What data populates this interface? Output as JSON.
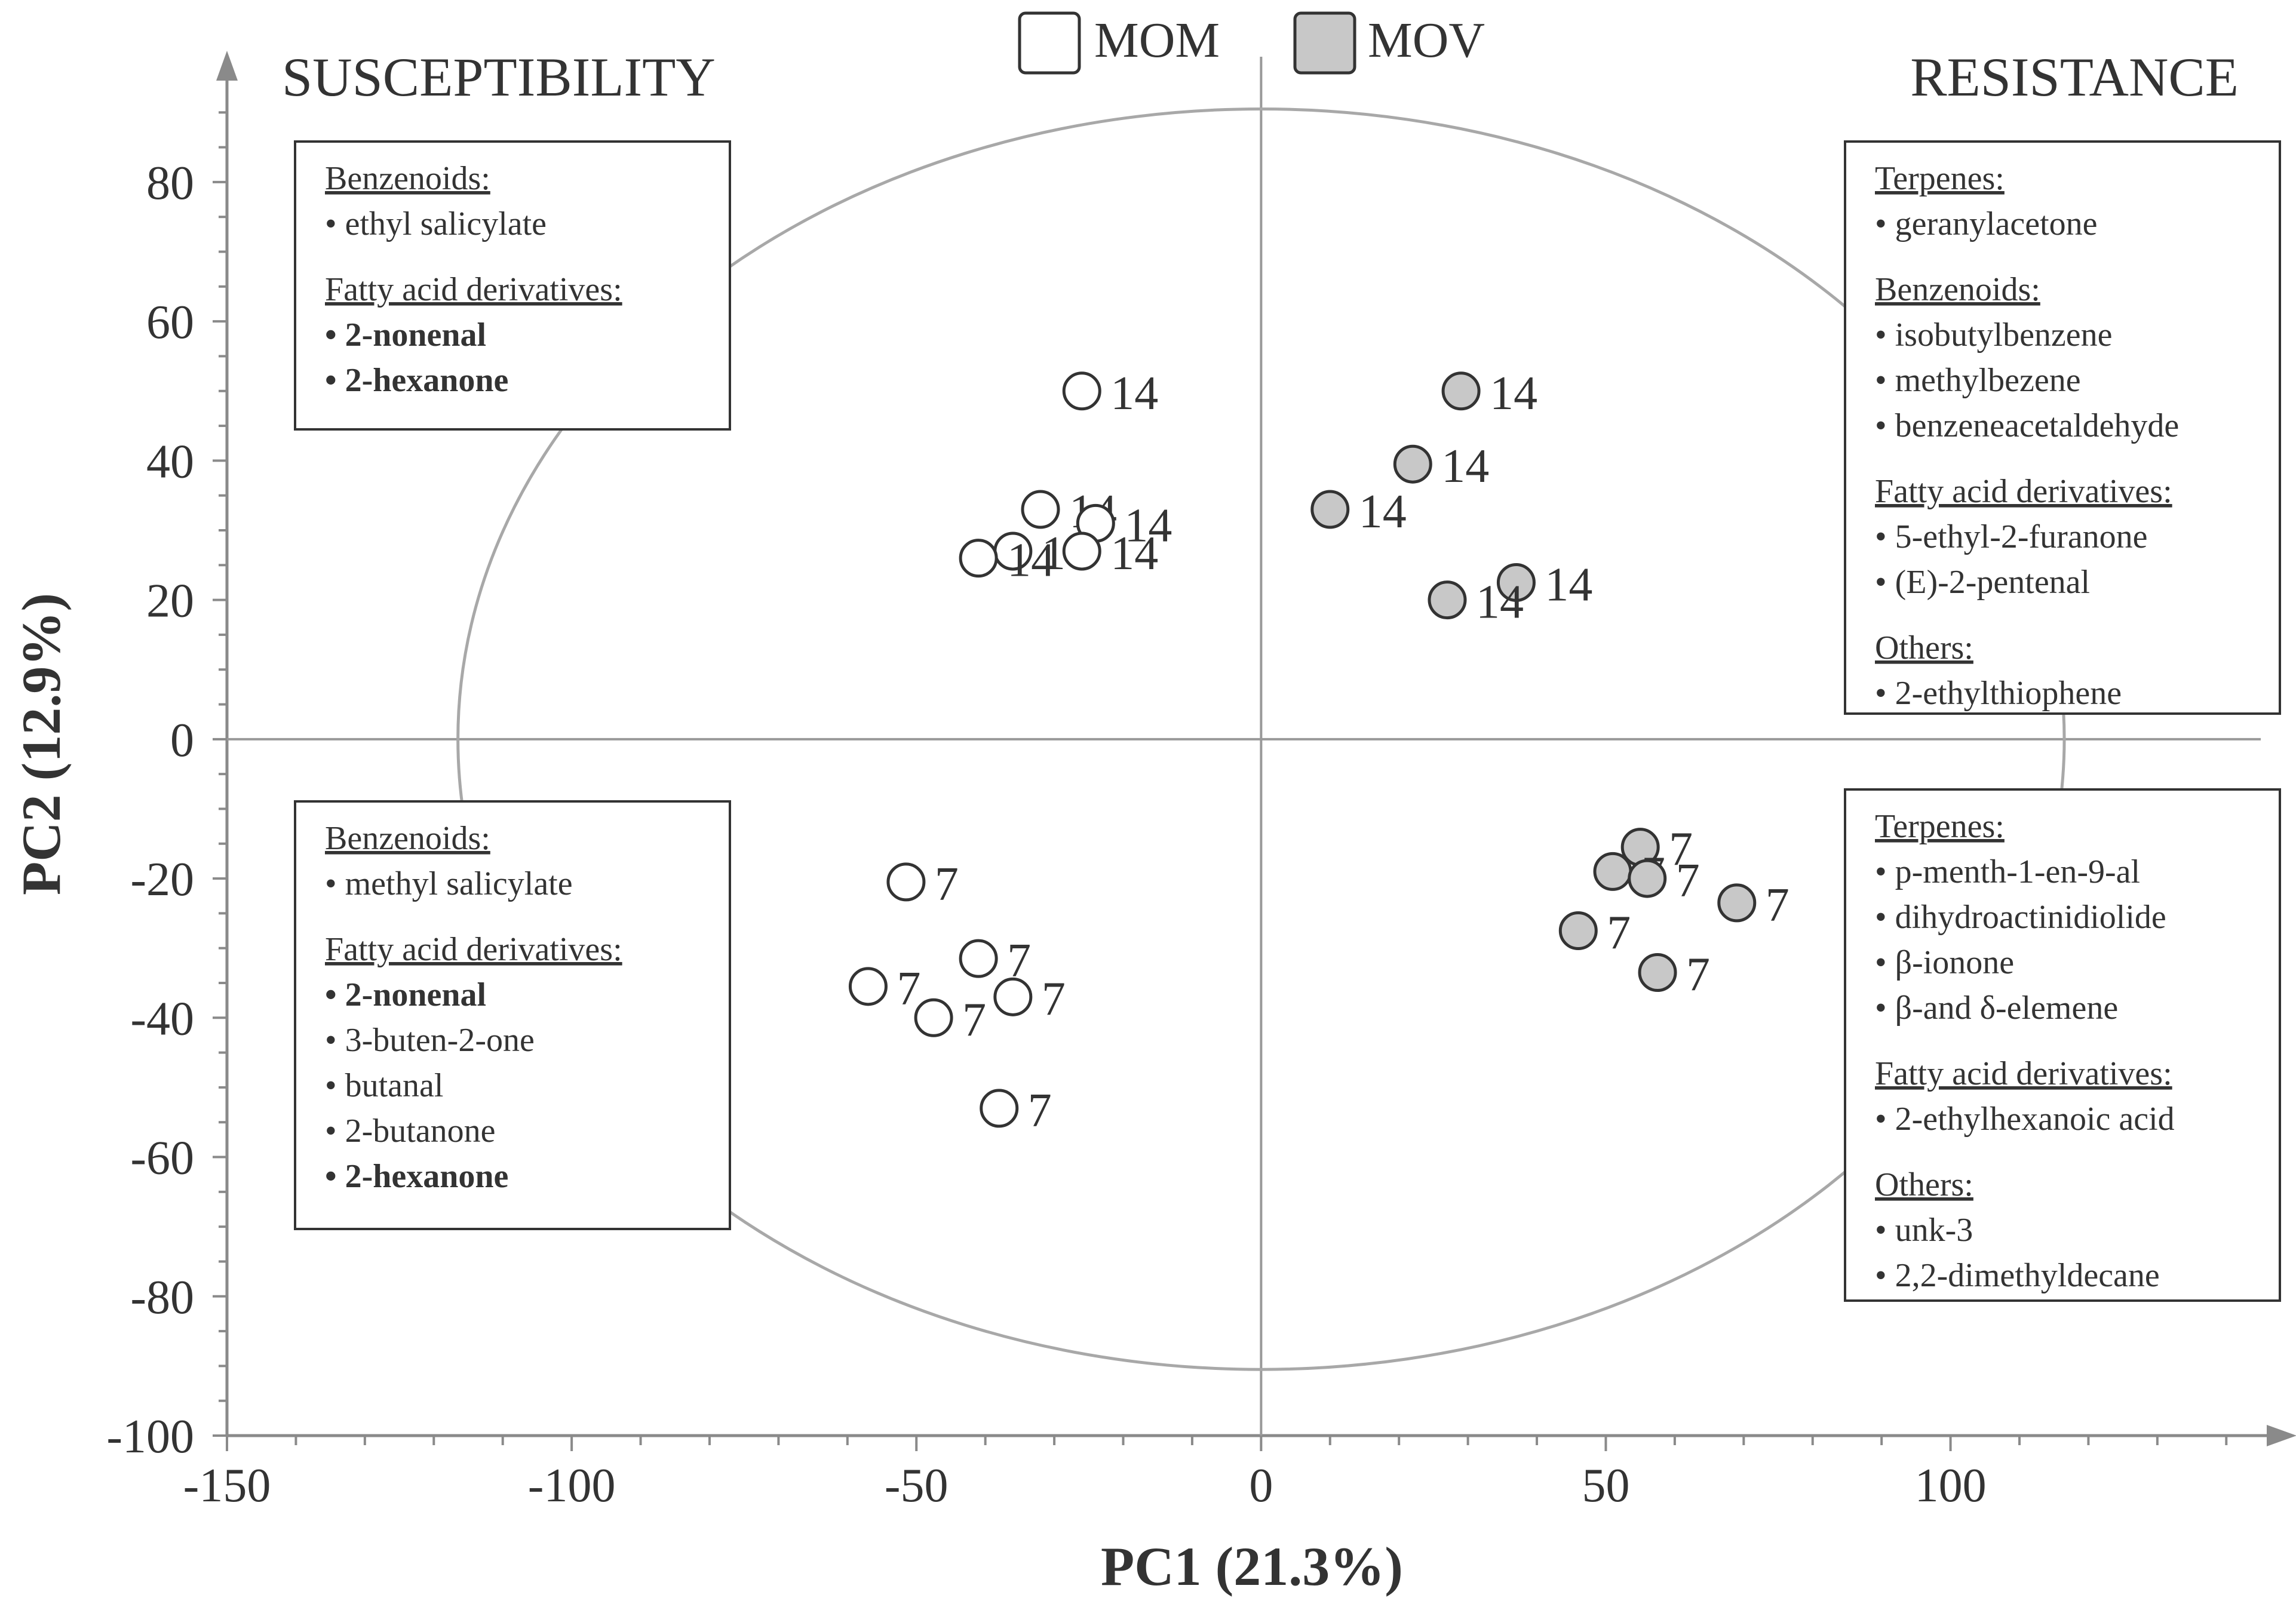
{
  "chart_data": {
    "type": "scatter",
    "xlabel": "PC1 (21.3%)",
    "ylabel": "PC2 (12.9%)",
    "xlim": [
      -150,
      145
    ],
    "ylim": [
      -100,
      98
    ],
    "x_ticks": [
      "-150",
      "-100",
      "-50",
      "0",
      "50",
      "100"
    ],
    "y_ticks": [
      "-100",
      "-80",
      "-60",
      "-40",
      "-20",
      "0",
      "20",
      "40",
      "60",
      "80"
    ],
    "grid": false,
    "legend_position": "top-center",
    "legend": [
      {
        "label": "MOM",
        "color": "#ffffff"
      },
      {
        "label": "MOV",
        "color": "#c8c8c8"
      }
    ],
    "region_labels": {
      "left": "SUSCEPTIBILITY",
      "right": "RESISTANCE"
    },
    "ellipse": {
      "cx": 0,
      "cy": 0,
      "rx": 116.5,
      "ry": 90.5
    },
    "series": [
      {
        "name": "MOM",
        "color": "#ffffff",
        "points": [
          {
            "x": -26,
            "y": 50,
            "label": "14"
          },
          {
            "x": -32,
            "y": 33,
            "label": "14"
          },
          {
            "x": -24,
            "y": 31,
            "label": "14"
          },
          {
            "x": -36,
            "y": 27,
            "label": "14"
          },
          {
            "x": -41,
            "y": 26,
            "label": "14"
          },
          {
            "x": -26,
            "y": 27,
            "label": "14"
          },
          {
            "x": -51.5,
            "y": -20.5,
            "label": "7"
          },
          {
            "x": -41,
            "y": -31.5,
            "label": "7"
          },
          {
            "x": -57,
            "y": -35.5,
            "label": "7"
          },
          {
            "x": -36,
            "y": -37,
            "label": "7"
          },
          {
            "x": -47.5,
            "y": -40,
            "label": "7"
          },
          {
            "x": -38,
            "y": -53,
            "label": "7"
          }
        ]
      },
      {
        "name": "MOV",
        "color": "#c8c8c8",
        "points": [
          {
            "x": 29,
            "y": 50,
            "label": "14"
          },
          {
            "x": 22,
            "y": 39.5,
            "label": "14"
          },
          {
            "x": 10,
            "y": 33,
            "label": "14"
          },
          {
            "x": 37,
            "y": 22.5,
            "label": "14"
          },
          {
            "x": 27,
            "y": 20,
            "label": "14"
          },
          {
            "x": 55,
            "y": -15.5,
            "label": "7"
          },
          {
            "x": 51,
            "y": -19,
            "label": "7"
          },
          {
            "x": 56,
            "y": -20,
            "label": "7"
          },
          {
            "x": 69,
            "y": -23.5,
            "label": "7"
          },
          {
            "x": 46,
            "y": -27.5,
            "label": "7"
          },
          {
            "x": 57.5,
            "y": -33.5,
            "label": "7"
          }
        ]
      }
    ]
  },
  "info_boxes": [
    {
      "position": "top-left",
      "groups": [
        {
          "heading": "Benzenoids:",
          "items": [
            {
              "text": "• ethyl salicylate",
              "bold": false
            }
          ]
        },
        {
          "heading": "Fatty acid derivatives:",
          "items": [
            {
              "text": "• 2-nonenal",
              "bold": true
            },
            {
              "text": "• 2-hexanone",
              "bold": true
            }
          ]
        }
      ]
    },
    {
      "position": "bottom-left",
      "groups": [
        {
          "heading": "Benzenoids:",
          "items": [
            {
              "text": "• methyl salicylate",
              "bold": false
            }
          ]
        },
        {
          "heading": "Fatty acid derivatives:",
          "items": [
            {
              "text": "• 2-nonenal",
              "bold": true
            },
            {
              "text": "• 3-buten-2-one",
              "bold": false
            },
            {
              "text": "• butanal",
              "bold": false
            },
            {
              "text": "• 2-butanone",
              "bold": false
            },
            {
              "text": "• 2-hexanone",
              "bold": true
            }
          ]
        }
      ]
    },
    {
      "position": "top-right",
      "groups": [
        {
          "heading": "Terpenes:",
          "items": [
            {
              "text": "• geranylacetone",
              "bold": false
            }
          ]
        },
        {
          "heading": "Benzenoids:",
          "items": [
            {
              "text": "• isobutylbenzene",
              "bold": false
            },
            {
              "text": "• methylbezene",
              "bold": false
            },
            {
              "text": "• benzeneacetaldehyde",
              "bold": false
            }
          ]
        },
        {
          "heading": "Fatty acid derivatives:",
          "items": [
            {
              "text": "• 5-ethyl-2-furanone",
              "bold": false
            },
            {
              "text": "• (E)-2-pentenal",
              "bold": false
            }
          ]
        },
        {
          "heading": "Others:",
          "items": [
            {
              "text": "• 2-ethylthiophene",
              "bold": false
            }
          ]
        }
      ]
    },
    {
      "position": "bottom-right",
      "groups": [
        {
          "heading": "Terpenes:",
          "items": [
            {
              "text": "• p-menth-1-en-9-al",
              "bold": false
            },
            {
              "text": "• dihydroactinidiolide",
              "bold": false
            },
            {
              "text": "• β-ionone",
              "bold": false
            },
            {
              "text": "• β-and δ-elemene",
              "bold": false
            }
          ]
        },
        {
          "heading": "Fatty acid derivatives:",
          "items": [
            {
              "text": "• 2-ethylhexanoic acid",
              "bold": false
            }
          ]
        },
        {
          "heading": "Others:",
          "items": [
            {
              "text": "• unk-3",
              "bold": false
            },
            {
              "text": "• 2,2-dimethyldecane",
              "bold": false
            }
          ]
        }
      ]
    }
  ]
}
